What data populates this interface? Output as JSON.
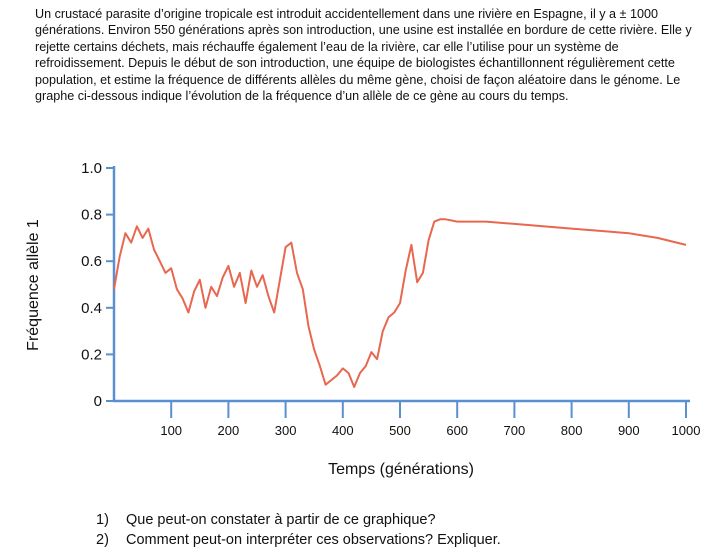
{
  "intro_text": "Un crustacé parasite d’origine tropicale est introduit accidentellement dans une rivière en Espagne, il y a ± 1000 générations. Environ 550 générations après son introduction, une usine est installée en bordure de cette rivière. Elle y rejette certains déchets, mais réchauffe également l’eau de la rivière, car elle l’utilise pour un système de refroidissement. Depuis le début de son introduction, une équipe de biologistes échantillonnent régulièrement cette population, et estime la fréquence de différents allèles du même gène, choisi de façon aléatoire dans le génome. Le graphe ci-dessous indique l’évolution de la fréquence d’un allèle de ce gène au cours du temps.",
  "questions": [
    {
      "number": "1)",
      "text": "Que peut-on constater à partir de ce graphique?"
    },
    {
      "number": "2)",
      "text": "Comment peut-on interpréter ces observations? Expliquer."
    }
  ],
  "chart_data": {
    "type": "line",
    "title": "",
    "xlabel": "Temps (générations)",
    "ylabel": "Fréquence allèle 1",
    "xlim": [
      0,
      1000
    ],
    "ylim": [
      0,
      1.0
    ],
    "x_ticks": [
      100,
      200,
      300,
      400,
      500,
      600,
      700,
      800,
      900,
      1000
    ],
    "y_ticks": [
      {
        "value": 0,
        "label": "0"
      },
      {
        "value": 0.2,
        "label": "0.2"
      },
      {
        "value": 0.4,
        "label": "0.4"
      },
      {
        "value": 0.6,
        "label": "0.6"
      },
      {
        "value": 0.8,
        "label": "0.8"
      },
      {
        "value": 1.0,
        "label": "1.0"
      }
    ],
    "grid": false,
    "colors": {
      "line": "#e8674f",
      "axis": "#5b8fd0"
    },
    "series": [
      {
        "x": [
          0,
          10,
          20,
          30,
          40,
          50,
          60,
          70,
          80,
          90,
          100,
          110,
          120,
          130,
          140,
          150,
          160,
          170,
          180,
          190,
          200,
          210,
          220,
          230,
          240,
          250,
          260,
          270,
          280,
          290,
          300,
          310,
          320,
          330,
          340,
          350,
          360,
          370,
          380,
          390,
          400,
          410,
          420,
          430,
          440,
          450,
          460,
          470,
          480,
          490,
          500,
          510,
          520,
          530,
          540,
          550,
          560,
          570,
          580,
          600,
          650,
          700,
          750,
          800,
          850,
          900,
          950,
          1000
        ],
        "values": [
          0.48,
          0.62,
          0.72,
          0.68,
          0.75,
          0.7,
          0.74,
          0.65,
          0.6,
          0.55,
          0.57,
          0.48,
          0.44,
          0.38,
          0.47,
          0.52,
          0.4,
          0.49,
          0.45,
          0.53,
          0.58,
          0.49,
          0.55,
          0.42,
          0.56,
          0.49,
          0.54,
          0.45,
          0.38,
          0.52,
          0.66,
          0.68,
          0.55,
          0.48,
          0.32,
          0.22,
          0.15,
          0.07,
          0.09,
          0.11,
          0.14,
          0.12,
          0.06,
          0.12,
          0.15,
          0.21,
          0.18,
          0.3,
          0.36,
          0.38,
          0.42,
          0.56,
          0.67,
          0.51,
          0.55,
          0.69,
          0.77,
          0.78,
          0.78,
          0.77,
          0.77,
          0.76,
          0.75,
          0.74,
          0.73,
          0.72,
          0.7,
          0.67
        ]
      }
    ]
  }
}
